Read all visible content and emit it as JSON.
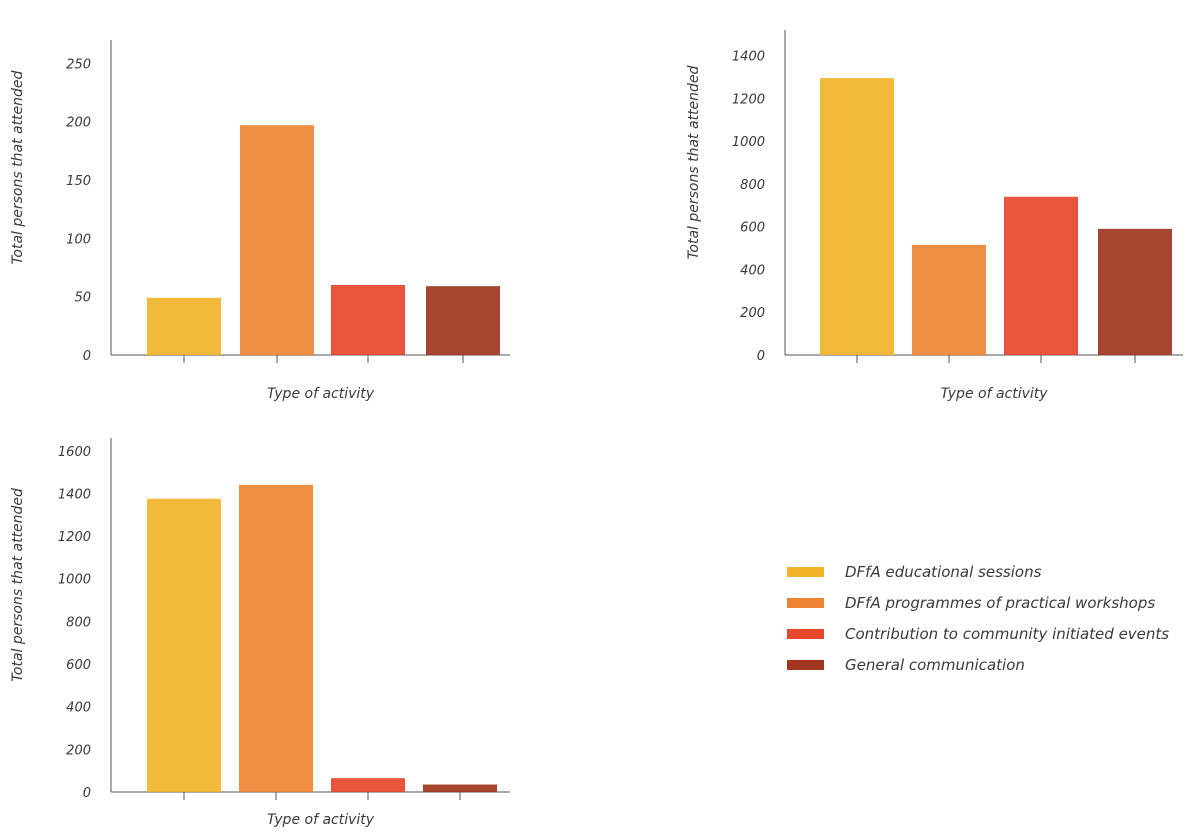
{
  "colors": [
    "#f2b32a",
    "#ee8334",
    "#e5482b",
    "#9e3620"
  ],
  "legend": [
    {
      "label": "DFfA educational sessions",
      "color": "#f2b32a"
    },
    {
      "label": "DFfA programmes of practical workshops",
      "color": "#ee8334"
    },
    {
      "label": "Contribution to community initiated events",
      "color": "#e5482b"
    },
    {
      "label": "General communication",
      "color": "#9e3620"
    }
  ],
  "chart_data": [
    {
      "type": "bar",
      "categories": [
        "DFfA educational sessions",
        "DFfA programmes of practical workshops",
        "Contribution to community initiated events",
        "General communication"
      ],
      "values": [
        49,
        197,
        60,
        59
      ],
      "xlabel": "Type of activity",
      "ylabel": "Total persons that attended",
      "ylim": [
        0,
        270
      ],
      "yticks": [
        0,
        50,
        100,
        150,
        200,
        250
      ],
      "grid": false
    },
    {
      "type": "bar",
      "categories": [
        "DFfA educational sessions",
        "DFfA programmes of practical workshops",
        "Contribution to community initiated events",
        "General communication"
      ],
      "values": [
        1295,
        515,
        740,
        590
      ],
      "xlabel": "Type of activity",
      "ylabel": "Total persons that attended",
      "ylim": [
        0,
        1520
      ],
      "yticks": [
        0,
        200,
        400,
        600,
        800,
        1000,
        1200,
        1400
      ],
      "grid": false
    },
    {
      "type": "bar",
      "categories": [
        "DFfA educational sessions",
        "DFfA programmes of practical workshops",
        "Contribution to community initiated events",
        "General communication"
      ],
      "values": [
        1375,
        1440,
        65,
        35
      ],
      "xlabel": "Type of activity",
      "ylabel": "Total persons that attended",
      "ylim": [
        0,
        1660
      ],
      "yticks": [
        0,
        200,
        400,
        600,
        800,
        1000,
        1200,
        1400,
        1600
      ],
      "grid": false
    }
  ]
}
